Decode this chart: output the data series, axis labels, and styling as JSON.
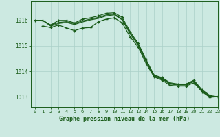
{
  "background_color": "#cce9e1",
  "grid_color": "#aad0c8",
  "line_color": "#1a5c1a",
  "title": "Graphe pression niveau de la mer (hPa)",
  "xlim": [
    -0.5,
    23
  ],
  "ylim": [
    1012.6,
    1016.75
  ],
  "yticks": [
    1013,
    1014,
    1015,
    1016
  ],
  "xticks": [
    0,
    1,
    2,
    3,
    4,
    5,
    6,
    7,
    8,
    9,
    10,
    11,
    12,
    13,
    14,
    15,
    16,
    17,
    18,
    19,
    20,
    21,
    22,
    23
  ],
  "series": [
    {
      "x": [
        0,
        1,
        2,
        3,
        4,
        5,
        6,
        7,
        8,
        9,
        10,
        11,
        12,
        13,
        14,
        15,
        16,
        17,
        18,
        19,
        20,
        21,
        22,
        23
      ],
      "y": [
        1016.0,
        1016.0,
        1015.82,
        1016.0,
        1016.0,
        1015.9,
        1016.05,
        1016.1,
        1016.18,
        1016.28,
        1016.3,
        1016.12,
        1015.55,
        1015.1,
        1014.45,
        1013.85,
        1013.75,
        1013.55,
        1013.5,
        1013.5,
        1013.65,
        1013.28,
        1013.05,
        1013.0
      ],
      "marker": true
    },
    {
      "x": [
        0,
        1,
        2,
        3,
        4,
        5,
        6,
        7,
        8,
        9,
        10,
        11,
        12,
        13,
        14,
        15,
        16,
        17,
        18,
        19,
        20,
        21,
        22,
        23
      ],
      "y": [
        1016.0,
        1016.0,
        1015.82,
        1015.92,
        1015.95,
        1015.88,
        1015.98,
        1016.05,
        1016.12,
        1016.22,
        1016.25,
        1016.05,
        1015.5,
        1015.05,
        1014.4,
        1013.82,
        1013.72,
        1013.52,
        1013.48,
        1013.48,
        1013.62,
        1013.25,
        1013.02,
        1013.0
      ],
      "marker": false
    },
    {
      "x": [
        0,
        1,
        2,
        3,
        4,
        5,
        6,
        7,
        8,
        9,
        10,
        11,
        12,
        13,
        14,
        15,
        16,
        17,
        18,
        19,
        20,
        21,
        22,
        23
      ],
      "y": [
        1016.0,
        1016.0,
        1015.78,
        1015.88,
        1015.92,
        1015.84,
        1015.94,
        1016.02,
        1016.08,
        1016.18,
        1016.22,
        1016.02,
        1015.47,
        1015.02,
        1014.38,
        1013.8,
        1013.7,
        1013.5,
        1013.46,
        1013.46,
        1013.6,
        1013.23,
        1013.0,
        1013.0
      ],
      "marker": false
    },
    {
      "x": [
        1,
        2,
        3,
        4,
        5,
        6,
        7,
        8,
        9,
        10,
        11,
        12,
        13,
        14,
        15,
        16,
        17,
        18,
        19,
        20,
        21,
        22,
        23
      ],
      "y": [
        1015.78,
        1015.72,
        1015.82,
        1015.7,
        1015.6,
        1015.7,
        1015.72,
        1015.95,
        1016.05,
        1016.1,
        1015.9,
        1015.35,
        1014.95,
        1014.3,
        1013.78,
        1013.65,
        1013.45,
        1013.42,
        1013.42,
        1013.55,
        1013.2,
        1012.98,
        1013.0
      ],
      "marker": true
    }
  ]
}
